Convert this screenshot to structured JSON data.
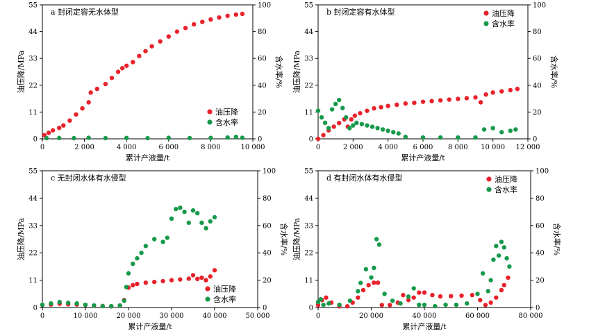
{
  "chart_data": [
    {
      "type": "scatter",
      "title": "a 封闭定容无水体型",
      "xlabel": "累计产液量/t",
      "ylabel": "油压降/MPa",
      "y2label": "含水率/%",
      "xlim": [
        0,
        10000
      ],
      "xticks": [
        0,
        2000,
        4000,
        6000,
        8000,
        10000
      ],
      "xtick_labels": [
        "0",
        "2 000",
        "4 000",
        "6 000",
        "8 000",
        "10 000"
      ],
      "ylim": [
        0,
        55
      ],
      "yticks": [
        "0",
        "11",
        "22",
        "33",
        "44",
        "55"
      ],
      "y2lim": [
        0,
        100
      ],
      "y2ticks": [
        "0",
        "20",
        "40",
        "60",
        "80",
        "100"
      ],
      "legend_position": "center-right",
      "series": [
        {
          "name": "油压降",
          "axis": "left",
          "color": "#e8212a",
          "x": [
            100,
            300,
            500,
            800,
            1000,
            1300,
            1600,
            1900,
            2200,
            2300,
            2600,
            3000,
            3300,
            3600,
            3800,
            4000,
            4300,
            4600,
            4900,
            5200,
            5600,
            6000,
            6400,
            6800,
            7200,
            7600,
            8000,
            8400,
            8800,
            9200,
            9500
          ],
          "y": [
            1.5,
            2.5,
            3.5,
            4.5,
            5.5,
            7.5,
            10,
            12.5,
            15,
            19,
            20.5,
            22.5,
            25,
            27.5,
            29,
            30,
            31.5,
            34,
            36,
            38,
            40,
            42,
            44,
            45.5,
            47,
            48,
            49,
            49.8,
            50.5,
            51,
            51.3
          ]
        },
        {
          "name": "含水率",
          "axis": "right",
          "color": "#16994a",
          "x": [
            200,
            800,
            1500,
            2200,
            3000,
            4000,
            5000,
            6000,
            7000,
            8000,
            8800,
            9200,
            9500
          ],
          "y": [
            0.5,
            0.6,
            0.5,
            0.8,
            0.5,
            0.7,
            0.5,
            0.8,
            0.6,
            0.7,
            1.0,
            1.5,
            0.8
          ]
        }
      ]
    },
    {
      "type": "scatter",
      "title": "b 封闭定容有水体型",
      "xlabel": "累计产液量/t",
      "ylabel": "油压降/MPa",
      "y2label": "含水率/%",
      "xlim": [
        0,
        12000
      ],
      "xticks": [
        0,
        2000,
        4000,
        6000,
        8000,
        10000,
        12000
      ],
      "xtick_labels": [
        "0",
        "2 000",
        "4 000",
        "6 000",
        "8 000",
        "10 000",
        "12 000"
      ],
      "ylim": [
        0,
        55
      ],
      "yticks": [
        "0",
        "11",
        "22",
        "33",
        "44",
        "55"
      ],
      "y2lim": [
        0,
        100
      ],
      "y2ticks": [
        "0",
        "20",
        "40",
        "60",
        "80",
        "100"
      ],
      "legend_position": "top-right",
      "series": [
        {
          "name": "油压降",
          "axis": "left",
          "color": "#e8212a",
          "x": [
            0,
            300,
            600,
            900,
            1200,
            1500,
            1700,
            1900,
            2100,
            2400,
            2800,
            3200,
            3600,
            4000,
            4500,
            5000,
            5500,
            6000,
            6500,
            7000,
            7500,
            8000,
            8500,
            9000,
            9300,
            9600,
            10000,
            10500,
            11000,
            11400
          ],
          "y": [
            0,
            1.5,
            3.5,
            5,
            6.5,
            8,
            5,
            8,
            9.5,
            10.5,
            11.5,
            12.5,
            13,
            13.5,
            14,
            14.5,
            14.8,
            15.2,
            15.5,
            15.8,
            16.1,
            16.4,
            16.7,
            17,
            15,
            18.2,
            19,
            19.5,
            20,
            20.5
          ]
        },
        {
          "name": "含水率",
          "axis": "right",
          "color": "#16994a",
          "x": [
            0,
            200,
            400,
            600,
            800,
            1000,
            1200,
            1400,
            1600,
            1800,
            2000,
            2200,
            2500,
            2800,
            3100,
            3400,
            3700,
            4000,
            4300,
            4600,
            5000,
            6000,
            7000,
            8000,
            9000,
            9500,
            10000,
            10500,
            11000,
            11300
          ],
          "y": [
            21,
            16,
            12,
            8,
            22,
            26,
            29,
            23,
            16,
            8,
            10,
            12,
            11,
            10,
            9,
            8,
            7,
            6,
            5,
            4,
            1.5,
            1,
            1,
            1,
            1,
            7,
            8,
            5,
            6,
            7
          ]
        }
      ]
    },
    {
      "type": "scatter",
      "title": "c 无封闭水体有水侵型",
      "xlabel": "累计产液量/t",
      "ylabel": "油压降/MPa",
      "y2label": "含水率/%",
      "xlim": [
        0,
        50000
      ],
      "xticks": [
        0,
        10000,
        20000,
        30000,
        40000,
        50000
      ],
      "xtick_labels": [
        "0",
        "10 000",
        "20 000",
        "30 000",
        "40 000",
        "50 000"
      ],
      "ylim": [
        0,
        55
      ],
      "yticks": [
        "0",
        "11",
        "22",
        "33",
        "44",
        "55"
      ],
      "y2lim": [
        0,
        100
      ],
      "y2ticks": [
        "0",
        "20",
        "40",
        "60",
        "80",
        "100"
      ],
      "legend_position": "bottom-right",
      "series": [
        {
          "name": "油压降",
          "axis": "left",
          "color": "#e8212a",
          "x": [
            0,
            2000,
            4000,
            6000,
            8000,
            10000,
            12000,
            14000,
            16000,
            18000,
            19000,
            20000,
            21000,
            22000,
            24000,
            26000,
            28000,
            30000,
            32000,
            34000,
            35000,
            36000,
            37000,
            38000,
            39000,
            40000
          ],
          "y": [
            1,
            1.2,
            1.5,
            1.3,
            1.2,
            1,
            0.8,
            0.6,
            0.5,
            0.8,
            3,
            8,
            9,
            9.5,
            10,
            10.3,
            10.6,
            11,
            11.3,
            11.6,
            13,
            11.5,
            12,
            11,
            12.5,
            15
          ]
        },
        {
          "name": "含水率",
          "axis": "right",
          "color": "#16994a",
          "x": [
            0,
            2000,
            4000,
            6000,
            8000,
            10000,
            12000,
            14000,
            16000,
            18000,
            19000,
            19500,
            20000,
            21000,
            22000,
            23000,
            24000,
            26000,
            28000,
            29000,
            30000,
            31000,
            32000,
            33000,
            34000,
            35000,
            36000,
            37000,
            38000,
            39000,
            40000
          ],
          "y": [
            2,
            3,
            4,
            3.5,
            3,
            2,
            1.5,
            1,
            1,
            1.5,
            5,
            15,
            25,
            32,
            36,
            40,
            45,
            50,
            48,
            51,
            65,
            72,
            73,
            70,
            62,
            71,
            69,
            62,
            58,
            63,
            66
          ]
        }
      ]
    },
    {
      "type": "scatter",
      "title": "d 有封闭水体有水侵型",
      "xlabel": "累计产液量/t",
      "ylabel": "油压降/MPa",
      "y2label": "含水率/%",
      "xlim": [
        0,
        80000
      ],
      "xticks": [
        0,
        20000,
        40000,
        60000,
        80000
      ],
      "xtick_labels": [
        "0",
        "20 000",
        "40 000",
        "60 000",
        "80 000"
      ],
      "ylim": [
        0,
        55
      ],
      "yticks": [
        "0",
        "11",
        "22",
        "33",
        "44",
        "55"
      ],
      "y2lim": [
        0,
        100
      ],
      "y2ticks": [
        "0",
        "20",
        "40",
        "60",
        "80",
        "100"
      ],
      "legend_position": "top-right",
      "series": [
        {
          "name": "油压降",
          "axis": "left",
          "color": "#e8212a",
          "x": [
            0,
            1500,
            3000,
            5000,
            8000,
            11000,
            13000,
            15000,
            17000,
            19000,
            21000,
            22500,
            24000,
            27000,
            30000,
            32000,
            34000,
            36000,
            38000,
            40000,
            43000,
            46000,
            50000,
            54000,
            58000,
            61000,
            63000,
            65000,
            67000,
            69000,
            70000,
            71500
          ],
          "y": [
            1,
            3,
            4,
            2,
            0.5,
            0.5,
            2,
            4,
            7,
            9,
            10,
            10,
            1,
            1,
            2,
            5,
            3,
            4,
            6,
            6,
            5,
            4.5,
            4.6,
            4.8,
            5,
            3,
            1,
            2,
            4,
            7,
            9,
            12
          ]
        },
        {
          "name": "含水率",
          "axis": "right",
          "color": "#16994a",
          "x": [
            0,
            1000,
            2000,
            4000,
            8000,
            12000,
            15000,
            16000,
            18000,
            20000,
            21000,
            22000,
            23000,
            25000,
            28000,
            31000,
            34000,
            36000,
            38000,
            40000,
            44000,
            48000,
            52000,
            56000,
            60000,
            62000,
            64000,
            65000,
            66000,
            67000,
            68000,
            69000,
            70000,
            71000,
            72000
          ],
          "y": [
            4,
            6,
            2,
            3,
            2,
            5,
            12,
            18,
            28,
            22,
            29,
            50,
            46,
            10,
            5,
            3,
            8,
            14,
            2,
            2,
            1,
            2,
            2,
            3,
            10,
            25,
            12,
            20,
            35,
            45,
            38,
            48,
            44,
            36,
            30
          ]
        }
      ]
    }
  ]
}
